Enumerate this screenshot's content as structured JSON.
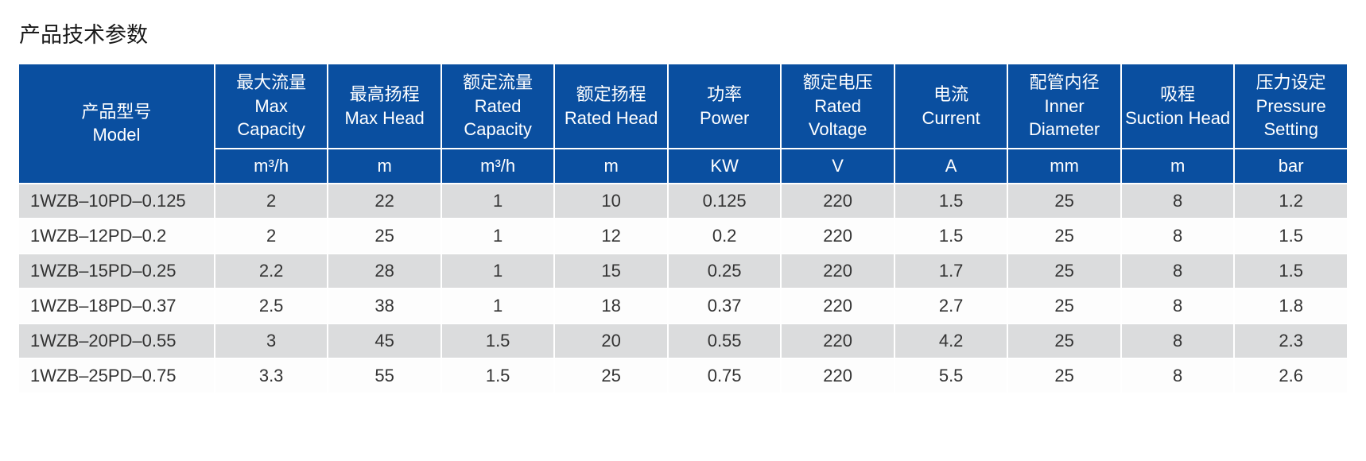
{
  "title": "产品技术参数",
  "table": {
    "colors": {
      "header_bg": "#0a4fa0",
      "header_text": "#ffffff",
      "row_odd_bg": "#dbdcdd",
      "row_even_bg": "#fdfdfd",
      "cell_text": "#333333",
      "border": "#ffffff"
    },
    "font_sizes": {
      "title": 27,
      "header": 22,
      "cell": 22
    },
    "model_header": {
      "cn": "产品型号",
      "en": "Model"
    },
    "columns": [
      {
        "cn": "最大流量",
        "en": "Max Capacity",
        "unit": "m³/h"
      },
      {
        "cn": "最高扬程",
        "en": "Max Head",
        "unit": "m"
      },
      {
        "cn": "额定流量",
        "en": "Rated Capacity",
        "unit": "m³/h"
      },
      {
        "cn": "额定扬程",
        "en": "Rated Head",
        "unit": "m"
      },
      {
        "cn": "功率",
        "en": "Power",
        "unit": "KW"
      },
      {
        "cn": "额定电压",
        "en": "Rated Voltage",
        "unit": "V"
      },
      {
        "cn": "电流",
        "en": "Current",
        "unit": "A"
      },
      {
        "cn": "配管内径",
        "en": "Inner Diameter",
        "unit": "mm"
      },
      {
        "cn": "吸程",
        "en": "Suction Head",
        "unit": "m"
      },
      {
        "cn": "压力设定",
        "en": "Pressure Setting",
        "unit": "bar"
      }
    ],
    "rows": [
      {
        "model": "1WZB–10PD–0.125",
        "values": [
          "2",
          "22",
          "1",
          "10",
          "0.125",
          "220",
          "1.5",
          "25",
          "8",
          "1.2"
        ]
      },
      {
        "model": "1WZB–12PD–0.2",
        "values": [
          "2",
          "25",
          "1",
          "12",
          "0.2",
          "220",
          "1.5",
          "25",
          "8",
          "1.5"
        ]
      },
      {
        "model": "1WZB–15PD–0.25",
        "values": [
          "2.2",
          "28",
          "1",
          "15",
          "0.25",
          "220",
          "1.7",
          "25",
          "8",
          "1.5"
        ]
      },
      {
        "model": "1WZB–18PD–0.37",
        "values": [
          "2.5",
          "38",
          "1",
          "18",
          "0.37",
          "220",
          "2.7",
          "25",
          "8",
          "1.8"
        ]
      },
      {
        "model": "1WZB–20PD–0.55",
        "values": [
          "3",
          "45",
          "1.5",
          "20",
          "0.55",
          "220",
          "4.2",
          "25",
          "8",
          "2.3"
        ]
      },
      {
        "model": "1WZB–25PD–0.75",
        "values": [
          "3.3",
          "55",
          "1.5",
          "25",
          "0.75",
          "220",
          "5.5",
          "25",
          "8",
          "2.6"
        ]
      }
    ]
  }
}
